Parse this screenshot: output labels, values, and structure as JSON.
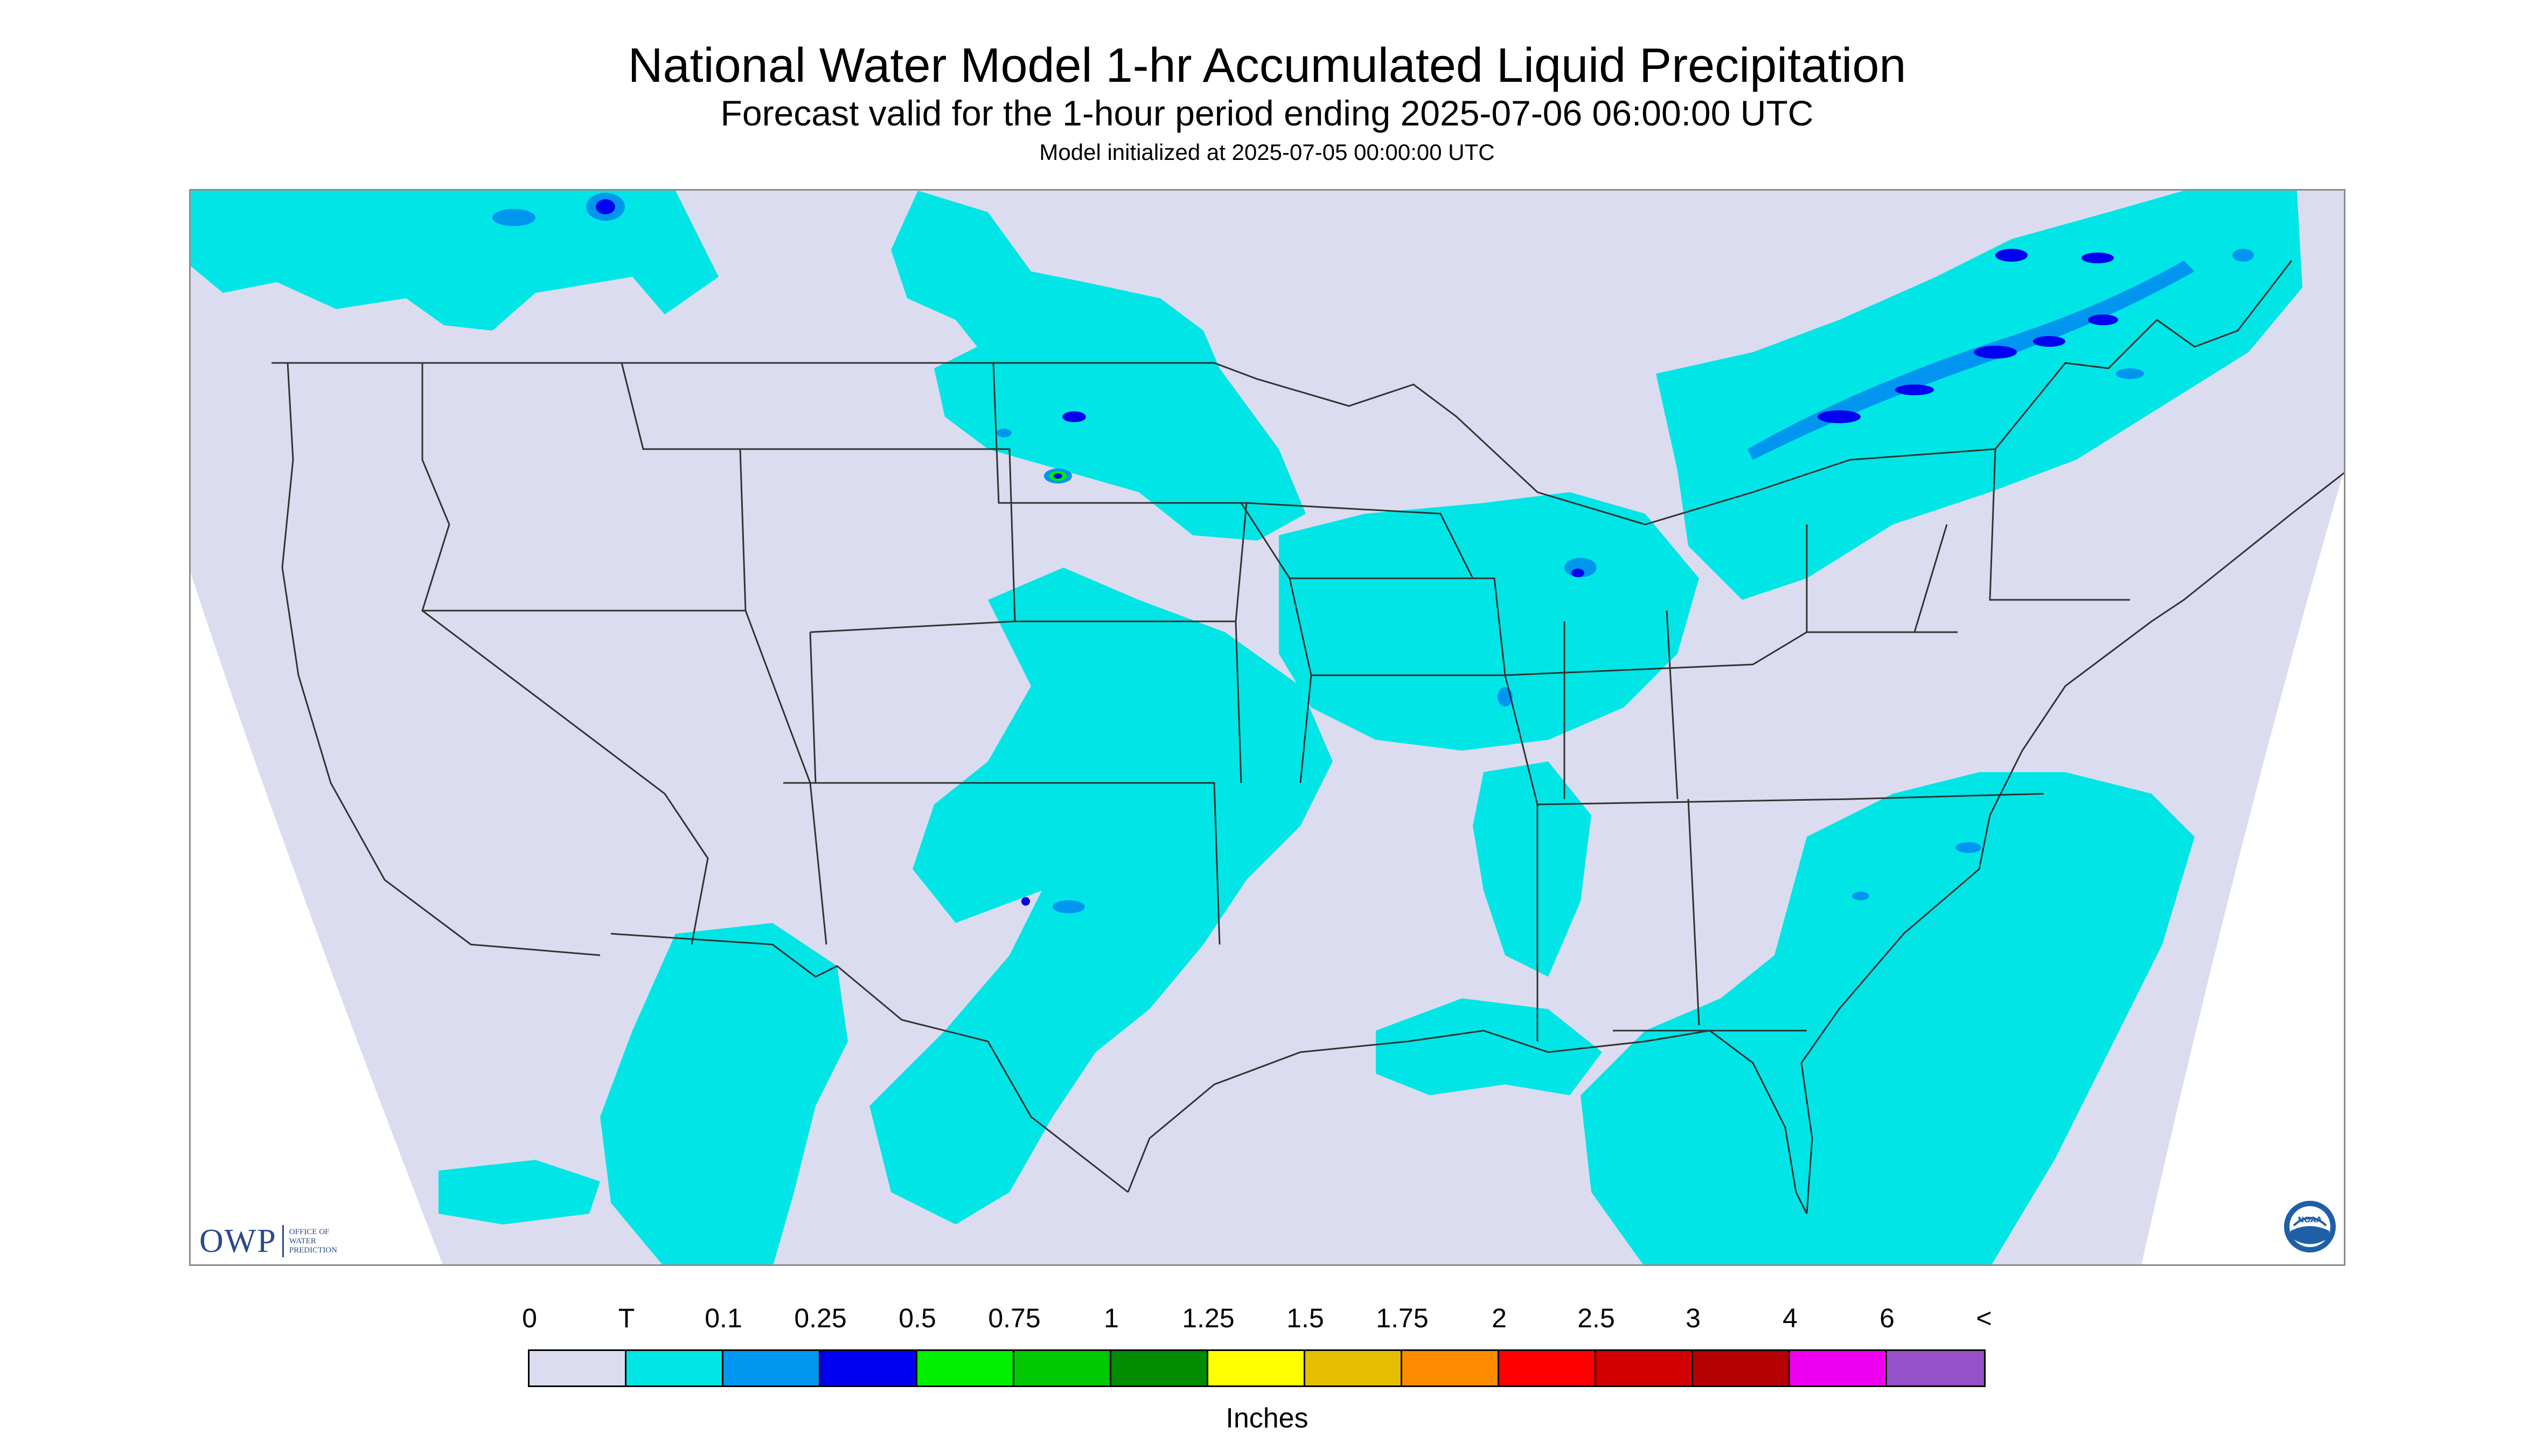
{
  "title": "National Water Model 1-hr Accumulated Liquid Precipitation",
  "subtitle": "Forecast valid for the 1-hour period ending 2025-07-06 06:00:00 UTC",
  "init_line": "Model initialized at 2025-07-05 00:00:00 UTC",
  "legend": {
    "labels": [
      "0",
      "T",
      "0.1",
      "0.25",
      "0.5",
      "0.75",
      "1",
      "1.25",
      "1.5",
      "1.75",
      "2",
      "2.5",
      "3",
      "4",
      "6",
      "<"
    ],
    "colors": [
      "#dcdcf0",
      "#00e6e6",
      "#0096f0",
      "#0000f0",
      "#00f000",
      "#00c800",
      "#008c00",
      "#ffff00",
      "#e6be00",
      "#ff8c00",
      "#ff0000",
      "#d20000",
      "#b40000",
      "#f000f0",
      "#9650c8"
    ],
    "units": "Inches"
  },
  "colors": {
    "no_precip": "#dcdcf0",
    "trace": "#00e6e6",
    "light_blue": "#0096f0",
    "blue": "#0000f0",
    "green": "#00f000",
    "outside": "#ffffff",
    "borders": "#333333"
  },
  "logos": {
    "owp_text": "OWP",
    "owp_small": [
      "OFFICE OF",
      "WATER",
      "PREDICTION"
    ],
    "noaa_text": "NOAA"
  }
}
